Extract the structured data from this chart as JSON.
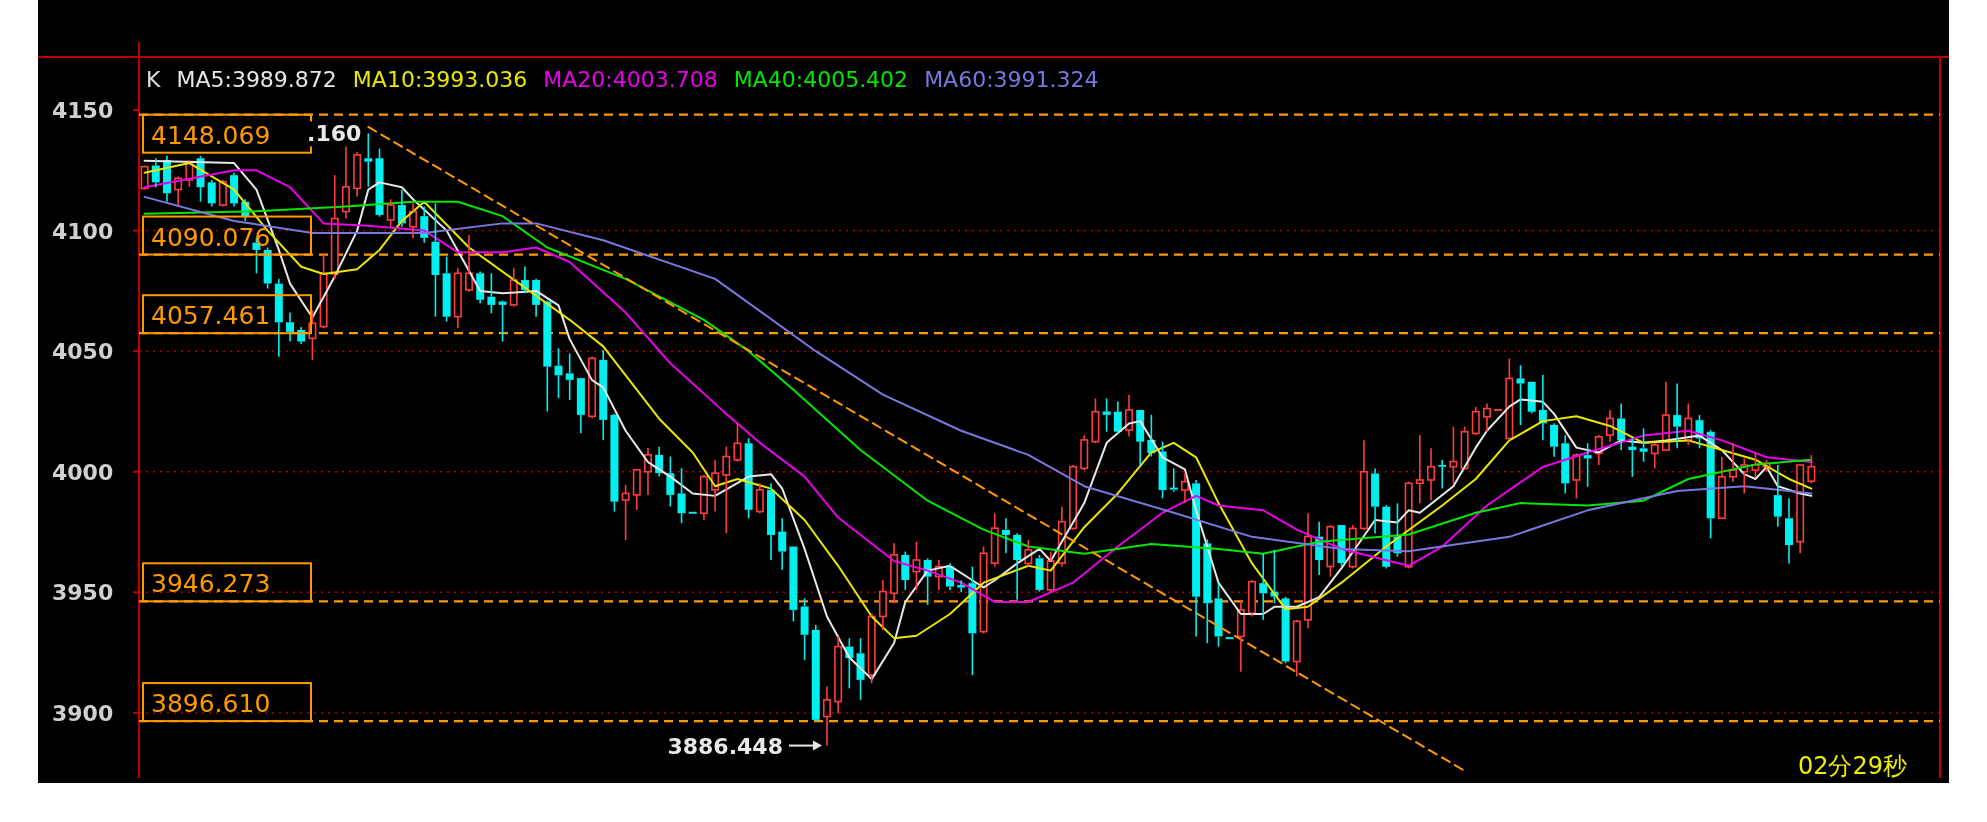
{
  "chart_data": {
    "type": "candlestick",
    "categories": [
      null,
      null,
      null,
      null,
      null,
      null,
      null,
      null,
      null,
      null,
      null,
      null,
      null,
      null,
      null,
      null,
      null,
      null,
      null,
      null,
      null,
      null,
      null,
      null,
      null,
      null,
      null,
      null,
      null,
      null,
      null,
      null,
      null,
      null,
      null,
      null,
      null,
      null,
      null,
      null,
      null,
      null,
      null,
      null,
      null,
      null,
      null,
      null,
      null,
      null,
      null,
      null,
      null,
      null,
      null,
      null,
      null,
      null,
      null,
      null,
      null,
      null,
      null,
      null,
      null,
      null,
      null,
      null,
      null,
      null,
      null,
      null,
      null,
      null,
      null,
      null,
      null,
      null,
      null,
      null,
      null,
      null,
      null,
      null,
      null,
      null,
      null,
      null,
      null,
      null,
      null,
      null,
      null,
      null,
      null,
      null,
      null,
      null,
      null,
      null,
      null,
      null,
      null,
      null,
      null,
      null,
      null,
      null,
      null,
      null,
      null,
      null,
      null,
      null,
      null,
      null,
      null,
      null,
      null,
      null,
      null,
      null,
      null,
      null,
      null,
      null,
      null,
      null,
      null,
      null,
      null,
      null,
      null,
      null,
      null,
      null,
      null,
      null,
      null,
      null,
      null,
      null,
      null,
      null,
      null,
      null,
      null,
      null,
      null,
      null,
      null,
      null,
      null,
      null,
      null,
      null,
      null,
      null,
      null,
      null,
      null
    ],
    "ohlc": [
      [
        4117.5,
        4127,
        4117,
        4126.5
      ],
      [
        4127,
        4130,
        4118,
        4120
      ],
      [
        4129.3,
        4131,
        4112,
        4115.5
      ],
      [
        4117,
        4122.4,
        4110.6,
        4121.7
      ],
      [
        4121,
        4129.3,
        4118.2,
        4128.6
      ],
      [
        4130,
        4131,
        4112,
        4118
      ],
      [
        4120,
        4121,
        4110,
        4111.3
      ],
      [
        4110.6,
        4121,
        4110,
        4120.3
      ],
      [
        4123,
        4124,
        4110,
        4111.3
      ],
      [
        4112,
        4113,
        4104,
        4106
      ],
      [
        4095,
        4097,
        4082.3,
        4092
      ],
      [
        4092,
        4093,
        4076,
        4078.1
      ],
      [
        4078,
        4080,
        4047.7,
        4062
      ],
      [
        4062,
        4066,
        4054,
        4058
      ],
      [
        4058.8,
        4060,
        4053,
        4054
      ],
      [
        4055.3,
        4067,
        4046.4,
        4061.6
      ],
      [
        4060.2,
        4090.6,
        4059.5,
        4082.3
      ],
      [
        4082,
        4123,
        4080,
        4105
      ],
      [
        4107.9,
        4135.5,
        4105,
        4118.2
      ],
      [
        4117.5,
        4132.7,
        4114,
        4131.4
      ],
      [
        4130,
        4140.3,
        4118.2,
        4128.6
      ],
      [
        4130,
        4134,
        4105.8,
        4106.5
      ],
      [
        4104.4,
        4113,
        4101.6,
        4110.6
      ],
      [
        4110.6,
        4117,
        4101.6,
        4103
      ],
      [
        4101.6,
        4111.3,
        4096.8,
        4107.9
      ],
      [
        4106,
        4110,
        4095,
        4097
      ],
      [
        4095.4,
        4111.3,
        4064.3,
        4081.6
      ],
      [
        4082.3,
        4089.2,
        4062.3,
        4064.3
      ],
      [
        4064.3,
        4084.4,
        4059.5,
        4082.3
      ],
      [
        4075.4,
        4098.2,
        4074.7,
        4082.3
      ],
      [
        4082.3,
        4083,
        4069.9,
        4071.3
      ],
      [
        4072.6,
        4082.3,
        4065.7,
        4069.2
      ],
      [
        4070.6,
        4071,
        4054,
        4069.2
      ],
      [
        4069.2,
        4084.4,
        4068.5,
        4079.5
      ],
      [
        4079.5,
        4085.1,
        4074,
        4075.4
      ],
      [
        4079.5,
        4080,
        4064.3,
        4069.2
      ],
      [
        4070.6,
        4071,
        4025,
        4043.6
      ],
      [
        4044,
        4051.2,
        4030.5,
        4040
      ],
      [
        4040.8,
        4049,
        4029.8,
        4038.1
      ],
      [
        4038.8,
        4039,
        4016,
        4023.6
      ],
      [
        4023,
        4047.8,
        4022.2,
        4047
      ],
      [
        4046.4,
        4050.5,
        4013.2,
        4021.5
      ],
      [
        4023.6,
        4024,
        3983.5,
        3987.6
      ],
      [
        3988.3,
        3994.5,
        3971.7,
        3991
      ],
      [
        3990.4,
        4001,
        3984.2,
        4000.8
      ],
      [
        4000,
        4009.8,
        3990.4,
        4007
      ],
      [
        4007,
        4010.4,
        3998,
        3999.4
      ],
      [
        3999.4,
        4006.3,
        3985.6,
        3990.4
      ],
      [
        3991,
        4001.5,
        3978.7,
        3982.8
      ],
      [
        3983,
        3983,
        3982.5,
        3982.5
      ],
      [
        3982.8,
        3998.7,
        3980,
        3998
      ],
      [
        3992.5,
        4004.9,
        3983.5,
        3999.4
      ],
      [
        3998.7,
        4010.4,
        3974.5,
        4006.3
      ],
      [
        4004.9,
        4020.1,
        4004.2,
        4011.8
      ],
      [
        4011.8,
        4013.9,
        3980.7,
        3984.2
      ],
      [
        3983.5,
        3995.2,
        3982.8,
        3992.5
      ],
      [
        3992.5,
        3995.2,
        3963.4,
        3973.8
      ],
      [
        3975.2,
        3980.7,
        3959.3,
        3966.9
      ],
      [
        3969,
        3969,
        3937.9,
        3942.7
      ],
      [
        3944.1,
        3947.5,
        3922,
        3932.4
      ],
      [
        3934.4,
        3936.5,
        3896.4,
        3897.1
      ],
      [
        3898.5,
        3910.9,
        3886.448,
        3905.4
      ],
      [
        3904.7,
        3931.7,
        3899.9,
        3927.5
      ],
      [
        3927.5,
        3931,
        3910.2,
        3922.7
      ],
      [
        3924.7,
        3931,
        3905.4,
        3913.7
      ],
      [
        3915.7,
        3941.3,
        3912.3,
        3940
      ],
      [
        3940,
        3955.1,
        3934.4,
        3950.3
      ],
      [
        3949.6,
        3970.3,
        3945.5,
        3965.5
      ],
      [
        3965.5,
        3966.9,
        3951,
        3955.1
      ],
      [
        3958.6,
        3971,
        3951,
        3963.4
      ],
      [
        3963.4,
        3964.1,
        3944.8,
        3956.5
      ],
      [
        3956.5,
        3963.4,
        3951,
        3960.7
      ],
      [
        3960.7,
        3962.1,
        3951,
        3952.4
      ],
      [
        3953,
        3955,
        3950,
        3952
      ],
      [
        3953.8,
        3960.7,
        3915.7,
        3933
      ],
      [
        3933.7,
        3969,
        3933,
        3966.2
      ],
      [
        3962.1,
        3982.8,
        3960.7,
        3976.6
      ],
      [
        3975.9,
        3980.7,
        3966.2,
        3973.8
      ],
      [
        3973.8,
        3974.5,
        3946.9,
        3963.4
      ],
      [
        3962,
        3971.7,
        3960.7,
        3967.6
      ],
      [
        3964.1,
        3965.5,
        3950.3,
        3951
      ],
      [
        3951,
        3966.9,
        3950.3,
        3963
      ],
      [
        3962.1,
        3985.5,
        3960.7,
        3979.3
      ],
      [
        3976.5,
        4002.8,
        3975.9,
        4002.1
      ],
      [
        4001.4,
        4015.2,
        4000.7,
        4013.2
      ],
      [
        4012.5,
        4030.4,
        4011.8,
        4024.9
      ],
      [
        4025,
        4030.4,
        4016.6,
        4023.6
      ],
      [
        4024.9,
        4029.1,
        4015.9,
        4016.6
      ],
      [
        4017.3,
        4031.8,
        4014.6,
        4025.6
      ],
      [
        4025.6,
        4025.6,
        4002.8,
        4012.5
      ],
      [
        4013.2,
        4023.6,
        4006.3,
        4007.7
      ],
      [
        4008.4,
        4012.5,
        3989,
        3992.4
      ],
      [
        3993,
        4001.4,
        3991.7,
        3992.4
      ],
      [
        3992.4,
        3999.4,
        3986.9,
        3995.9
      ],
      [
        3995.2,
        3996.6,
        3931.7,
        3948.2
      ],
      [
        3970.3,
        3972,
        3928.9,
        3945.5
      ],
      [
        3947.5,
        3953.8,
        3927.5,
        3931.7
      ],
      [
        3931,
        3931,
        3930.5,
        3930.5
      ],
      [
        3931.7,
        3946.8,
        3917.1,
        3942.7
      ],
      [
        3941.3,
        3955.1,
        3940,
        3954.4
      ],
      [
        3953.8,
        3966.2,
        3938.6,
        3949.6
      ],
      [
        3950.3,
        3967.6,
        3945.5,
        3948.2
      ],
      [
        3947.5,
        3948.2,
        3920.6,
        3921.3
      ],
      [
        3921.3,
        3938.6,
        3915.1,
        3938
      ],
      [
        3938.6,
        3982.8,
        3935.1,
        3973.1
      ],
      [
        3973.1,
        3979.3,
        3957.2,
        3963.4
      ],
      [
        3960.7,
        3977.9,
        3956.5,
        3977.2
      ],
      [
        3977.9,
        3977.9,
        3960.7,
        3962.1
      ],
      [
        3960.6,
        3977.9,
        3959.9,
        3976.5
      ],
      [
        3976.5,
        4013.1,
        3975.8,
        4000
      ],
      [
        3999.3,
        4001.4,
        3974.4,
        3985.5
      ],
      [
        3985.5,
        3986.2,
        3959.9,
        3960.6
      ],
      [
        3973.1,
        3986.9,
        3964.8,
        3966.2
      ],
      [
        3960.6,
        3995.9,
        3959.9,
        3995.2
      ],
      [
        3995.2,
        4015.2,
        3986.9,
        3996.6
      ],
      [
        3996.6,
        4009.7,
        3988.2,
        4002.1
      ],
      [
        4002.8,
        4004.9,
        3993.1,
        4002.1
      ],
      [
        4002.1,
        4018.7,
        3995.2,
        4004.2
      ],
      [
        4001.4,
        4018.7,
        4000.7,
        4016.6
      ],
      [
        4015.9,
        4026.9,
        4015.2,
        4024.9
      ],
      [
        4022.8,
        4028.3,
        4016.6,
        4026.2
      ],
      [
        4025.6,
        4025.6,
        4025.6,
        4025.6
      ],
      [
        4013.8,
        4046.9,
        4013.1,
        4038.7
      ],
      [
        4038.7,
        4044.2,
        4019.4,
        4036.6
      ],
      [
        4037.3,
        4037.3,
        4024.2,
        4024.9
      ],
      [
        4025.6,
        4040.1,
        4013.1,
        4020.1
      ],
      [
        4019.4,
        4020.1,
        4006.2,
        4010.4
      ],
      [
        4011.8,
        4015.2,
        3991,
        3995.2
      ],
      [
        3996.6,
        4007.6,
        3988.9,
        4006.9
      ],
      [
        4006.9,
        4011.8,
        3993.8,
        4005.5
      ],
      [
        4007.6,
        4015.2,
        4002.8,
        4014.5
      ],
      [
        4015.2,
        4025.6,
        4012.4,
        4022.1
      ],
      [
        4022.1,
        4028.3,
        4009,
        4013.1
      ],
      [
        4010.4,
        4013.8,
        3997.9,
        4009
      ],
      [
        4009.7,
        4018,
        4004.2,
        4008.3
      ],
      [
        4007.6,
        4011.8,
        4001.4,
        4011.1
      ],
      [
        4009,
        4037.3,
        4009,
        4023.5
      ],
      [
        4023.5,
        4036.6,
        4009.7,
        4018.7
      ],
      [
        4013.1,
        4028.3,
        4011.1,
        4022.1
      ],
      [
        4021.4,
        4023.5,
        4009.7,
        4013.8
      ],
      [
        4016.6,
        4017.3,
        3972.4,
        3980.7
      ],
      [
        3980.7,
        4006.2,
        3980.7,
        3997.9
      ],
      [
        3997.9,
        4011.8,
        3995.9,
        4000.7
      ],
      [
        4000,
        4005.5,
        3991,
        4002.8
      ],
      [
        4000.7,
        4007.6,
        3997.9,
        4002.8
      ],
      [
        4002.1,
        4004.9,
        4000,
        4003.5
      ],
      [
        3990.3,
        4002.8,
        3977.2,
        3981.4
      ],
      [
        3980.7,
        3989,
        3962,
        3969.6
      ],
      [
        3971,
        4002.8,
        3966.2,
        4002.8
      ],
      [
        3996.1,
        4006.9,
        3995.2,
        4002.1
      ],
      null,
      null,
      null,
      null,
      null,
      null,
      null,
      null,
      null,
      null,
      null
    ],
    "series": [
      {
        "name": "MA5:3989.872",
        "type": "line",
        "color": "#e8e8e8",
        "values": [
          4129,
          null,
          null,
          null,
          null,
          null,
          null,
          null,
          4128,
          null,
          4117,
          null,
          4092,
          4078,
          null,
          4064,
          null,
          4081,
          null,
          4100,
          4117,
          4120,
          null,
          4118,
          4113,
          null,
          null,
          4100,
          null,
          null,
          4075,
          null,
          4074,
          null,
          null,
          4075,
          null,
          4069,
          4055,
          null,
          4038,
          4035,
          null,
          4017,
          null,
          4004,
          null,
          3998,
          null,
          3991,
          null,
          3990,
          null,
          null,
          3998,
          null,
          3999,
          3993,
          null,
          3968,
          null,
          3940,
          null,
          3923,
          null,
          3914,
          null,
          3929,
          3946,
          null,
          3959,
          null,
          3961,
          null,
          3955,
          3952,
          3955,
          null,
          3962,
          null,
          3968,
          3963,
          null,
          null,
          3987,
          null,
          4012,
          null,
          4020,
          4021,
          null,
          4006,
          null,
          4001,
          3984,
          null,
          3954,
          null,
          3941,
          null,
          3941,
          3944,
          null,
          3944,
          null,
          3948,
          null,
          3960,
          null,
          null,
          3980,
          null,
          3979,
          3984,
          3983,
          null,
          null,
          3994,
          null,
          4010,
          4017,
          null,
          4027,
          4030,
          null,
          4029,
          4024,
          null,
          4010,
          null,
          4008,
          null,
          4013,
          null,
          4012,
          null,
          4013,
          null,
          null,
          4015,
          null,
          4009,
          null,
          3999,
          3997,
          4002,
          3994,
          null,
          3991,
          3990,
          null,
          null,
          null,
          null,
          null,
          null,
          null,
          null,
          null,
          null,
          null
        ]
      },
      {
        "name": "MA10:3993.036",
        "type": "line",
        "color": "#e8e800",
        "values": [
          4124,
          null,
          null,
          null,
          4128,
          null,
          null,
          null,
          4117,
          null,
          null,
          4100,
          null,
          null,
          4085,
          null,
          4082,
          null,
          null,
          4084,
          null,
          4092,
          null,
          4104,
          null,
          4112,
          null,
          null,
          null,
          4093,
          null,
          null,
          null,
          null,
          null,
          4073,
          null,
          null,
          4063,
          null,
          null,
          4052,
          null,
          null,
          null,
          null,
          4022,
          null,
          null,
          4008,
          null,
          3994,
          null,
          3997,
          null,
          null,
          3993,
          null,
          null,
          3980,
          null,
          null,
          3961,
          null,
          null,
          3940,
          null,
          3931,
          null,
          3932,
          null,
          null,
          3941,
          null,
          null,
          3954,
          null,
          null,
          null,
          3961,
          null,
          3959,
          null,
          null,
          3977,
          null,
          null,
          3991,
          null,
          null,
          4008,
          null,
          4012,
          null,
          4006,
          null,
          3987,
          null,
          null,
          3962,
          null,
          null,
          3943,
          null,
          3944,
          null,
          null,
          3954,
          null,
          null,
          null,
          3969,
          null,
          null,
          null,
          null,
          3986,
          null,
          null,
          3997,
          null,
          null,
          4013,
          null,
          null,
          4021,
          null,
          null,
          4023,
          null,
          null,
          4019,
          null,
          null,
          4012,
          null,
          null,
          null,
          4013,
          null,
          null,
          4009,
          null,
          null,
          4005,
          null,
          null,
          3997,
          null,
          3993,
          null,
          null,
          null,
          null,
          null,
          null,
          null,
          null,
          null,
          null,
          null
        ]
      },
      {
        "name": "MA20:4003.708",
        "type": "line",
        "color": "#e800e8",
        "values": [
          4118,
          null,
          null,
          null,
          null,
          null,
          null,
          null,
          4125,
          null,
          4125,
          null,
          null,
          4118,
          null,
          null,
          4103,
          null,
          null,
          null,
          4102,
          null,
          null,
          null,
          null,
          4100,
          null,
          null,
          4091,
          null,
          null,
          null,
          4091,
          null,
          null,
          4093,
          null,
          null,
          4087,
          null,
          null,
          null,
          null,
          4066,
          null,
          null,
          null,
          4045,
          null,
          null,
          null,
          null,
          4024,
          null,
          null,
          4012,
          null,
          null,
          null,
          3998,
          null,
          null,
          3981,
          null,
          null,
          null,
          null,
          3963,
          null,
          null,
          3959,
          null,
          null,
          3954,
          null,
          null,
          3946,
          null,
          null,
          3946,
          null,
          null,
          null,
          3954,
          null,
          null,
          null,
          3969,
          null,
          null,
          null,
          3983,
          null,
          null,
          3990,
          null,
          3986,
          null,
          null,
          null,
          3984,
          null,
          null,
          3976,
          null,
          null,
          null,
          3968,
          null,
          null,
          null,
          null,
          null,
          3961,
          null,
          null,
          3969,
          null,
          null,
          null,
          3986,
          null,
          null,
          null,
          null,
          4002,
          null,
          null,
          null,
          4008,
          null,
          null,
          null,
          null,
          4015,
          null,
          null,
          null,
          4017,
          null,
          null,
          4013,
          null,
          null,
          null,
          4006,
          null,
          null,
          null,
          4004,
          null,
          null,
          null,
          null,
          null,
          null,
          null,
          null,
          null,
          null,
          null
        ]
      },
      {
        "name": "MA40:4005.402",
        "type": "line",
        "color": "#00e800",
        "values": [
          4107,
          null,
          null,
          null,
          null,
          null,
          null,
          null,
          null,
          null,
          4108,
          null,
          null,
          null,
          null,
          null,
          null,
          null,
          4110,
          null,
          null,
          null,
          null,
          null,
          4112,
          null,
          null,
          null,
          4112,
          null,
          null,
          null,
          4106,
          null,
          null,
          null,
          4093,
          null,
          null,
          null,
          null,
          null,
          null,
          4080,
          null,
          null,
          null,
          null,
          null,
          null,
          4063,
          null,
          null,
          null,
          4050,
          null,
          null,
          null,
          4034,
          null,
          null,
          null,
          null,
          null,
          4009,
          null,
          null,
          null,
          null,
          null,
          3988,
          null,
          null,
          null,
          null,
          3976,
          null,
          null,
          null,
          3969,
          null,
          null,
          null,
          null,
          3966,
          null,
          null,
          null,
          null,
          null,
          3970,
          null,
          null,
          null,
          null,
          null,
          3968,
          null,
          null,
          null,
          3966,
          null,
          null,
          null,
          null,
          3971,
          null,
          null,
          null,
          null,
          null,
          null,
          null,
          3974,
          null,
          null,
          null,
          null,
          null,
          3983,
          null,
          null,
          null,
          3987,
          null,
          null,
          null,
          null,
          null,
          3986,
          null,
          null,
          null,
          null,
          3988,
          null,
          null,
          null,
          3997,
          null,
          null,
          null,
          null,
          null,
          4003,
          null,
          null,
          null,
          null,
          4005,
          null,
          null,
          null,
          null,
          null,
          null,
          null,
          null,
          null,
          null,
          null
        ]
      },
      {
        "name": "MA60:3991.324",
        "type": "line",
        "color": "#7878e0",
        "values": [
          4114,
          null,
          null,
          null,
          null,
          null,
          null,
          null,
          4104,
          null,
          null,
          null,
          null,
          null,
          null,
          4099,
          null,
          null,
          null,
          null,
          null,
          null,
          null,
          null,
          null,
          4099,
          null,
          null,
          null,
          null,
          null,
          null,
          4103,
          null,
          null,
          4103,
          null,
          null,
          null,
          null,
          null,
          4096,
          null,
          null,
          null,
          null,
          null,
          null,
          null,
          null,
          null,
          4080,
          null,
          null,
          null,
          null,
          null,
          null,
          null,
          null,
          4050,
          null,
          null,
          null,
          null,
          null,
          4032,
          null,
          null,
          null,
          null,
          null,
          null,
          4017,
          null,
          null,
          null,
          null,
          null,
          4007,
          null,
          null,
          null,
          null,
          3994,
          null,
          null,
          null,
          null,
          null,
          null,
          null,
          3983,
          null,
          null,
          null,
          null,
          null,
          null,
          3973,
          null,
          null,
          null,
          null,
          null,
          null,
          null,
          3968,
          null,
          null,
          null,
          null,
          null,
          3967,
          null,
          null,
          null,
          null,
          null,
          null,
          null,
          null,
          3973,
          null,
          null,
          null,
          null,
          null,
          null,
          3984,
          null,
          null,
          null,
          null,
          null,
          null,
          null,
          3992,
          null,
          null,
          null,
          null,
          null,
          3994,
          null,
          null,
          null,
          null,
          null,
          3991,
          null,
          null,
          null,
          null,
          null,
          null,
          null,
          null,
          null,
          null,
          null
        ]
      },
      {
        "type": "line",
        "color": "#ff9900",
        "line_style": "dashed",
        "values": [
          null,
          null,
          null,
          null,
          null,
          null,
          null,
          null,
          null,
          null,
          null,
          null,
          null,
          null,
          null,
          null,
          null,
          null,
          null,
          null,
          4143,
          null,
          null,
          null,
          null,
          null,
          null,
          null,
          null,
          null,
          null,
          null,
          null,
          null,
          null,
          null,
          null,
          null,
          null,
          null,
          null,
          null,
          null,
          null,
          null,
          null,
          null,
          null,
          null,
          null,
          null,
          null,
          null,
          null,
          null,
          null,
          null,
          null,
          null,
          null,
          null,
          null,
          null,
          null,
          null,
          null,
          null,
          null,
          null,
          null,
          null,
          null,
          null,
          null,
          null,
          null,
          null,
          null,
          null,
          null,
          null,
          null,
          null,
          null,
          null,
          null,
          null,
          null,
          null,
          null,
          null,
          null,
          null,
          null,
          null,
          null,
          null,
          null,
          null,
          null,
          null,
          null,
          null,
          null,
          null,
          null,
          null,
          null,
          null,
          null,
          null,
          null,
          null,
          null,
          null,
          null,
          null,
          null,
          3876,
          null,
          null,
          null,
          null,
          null,
          null,
          null,
          null,
          null,
          null,
          null,
          null,
          null,
          null,
          null,
          null,
          null,
          null,
          null,
          null,
          null,
          null,
          null,
          null,
          null,
          null,
          null,
          null,
          null,
          null,
          null,
          null,
          null,
          null,
          null,
          null,
          null,
          null,
          null,
          null,
          null,
          null
        ]
      }
    ],
    "ylim": [
      3873,
      4172
    ],
    "yticks": [
      3900,
      3950,
      4000,
      4050,
      4100,
      4150
    ],
    "grid": "y",
    "legend": "top left",
    "legend_title": "K",
    "ref_lines": [
      {
        "axis": "y",
        "value": 4148.069,
        "label": "4148.069",
        "color": "#ff9900",
        "line_style": "dashed"
      },
      {
        "axis": "y",
        "value": 4090.076,
        "label": "4090.076",
        "color": "#ff9900",
        "line_style": "dashed"
      },
      {
        "axis": "y",
        "value": 4057.461,
        "label": "4057.461",
        "color": "#ff9900",
        "line_style": "dashed"
      },
      {
        "axis": "y",
        "value": 3946.273,
        "label": "3946.273",
        "color": "#ff9900",
        "line_style": "dashed"
      },
      {
        "axis": "y",
        "value": 3896.61,
        "label": "3896.610",
        "color": "#ff9900",
        "line_style": "dashed"
      }
    ],
    "annotations": [
      ".160",
      "3886.448",
      "02分29秒"
    ]
  }
}
